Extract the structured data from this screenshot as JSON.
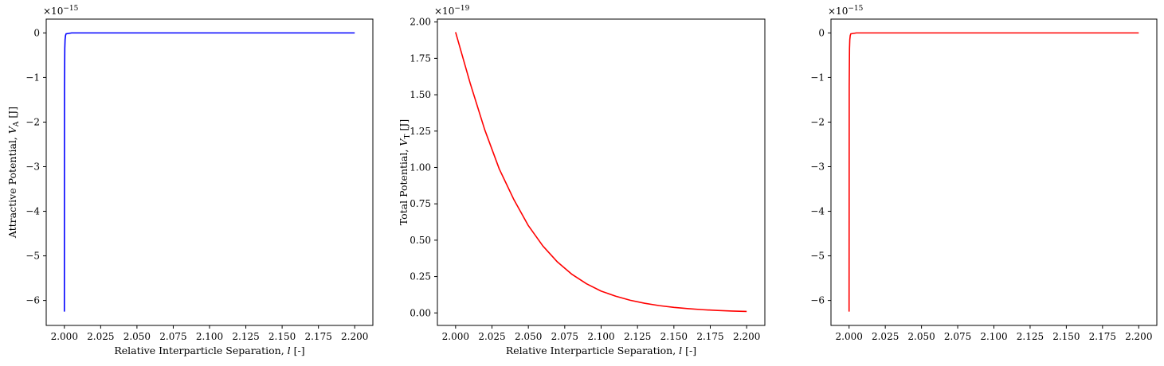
{
  "chart_data": [
    {
      "type": "line",
      "xlabel": "Relative Interparticle Separation, l [-]",
      "ylabel": "Attractive Potential, V_A [J]",
      "ylabel_parts": {
        "pre": "Attractive Potential, ",
        "var": "V",
        "sub": "A",
        "post": " [J]"
      },
      "xlabel_parts": {
        "pre": "Relative Interparticle Separation, ",
        "var": "l",
        "post": " [-]"
      },
      "y_multiplier": {
        "base": "×10",
        "exponent": "−15"
      },
      "xlim": [
        1.9875,
        2.2125
      ],
      "ylim": [
        -6.56,
        0.31
      ],
      "xticks": [
        2.0,
        2.025,
        2.05,
        2.075,
        2.1,
        2.125,
        2.15,
        2.175,
        2.2
      ],
      "xtick_labels": [
        "2.000",
        "2.025",
        "2.050",
        "2.075",
        "2.100",
        "2.125",
        "2.150",
        "2.175",
        "2.200"
      ],
      "yticks": [
        0,
        -1,
        -2,
        -3,
        -4,
        -5,
        -6
      ],
      "ytick_labels": [
        "0",
        "−1",
        "−2",
        "−3",
        "−4",
        "−5",
        "−6"
      ],
      "series": [
        {
          "color": "#0000ff",
          "x": [
            2.0,
            2.0001,
            2.0003,
            2.0005,
            2.0008,
            2.0012,
            2.005,
            2.05,
            2.1,
            2.15,
            2.2
          ],
          "y": [
            -6.25,
            -1.2,
            -0.35,
            -0.15,
            -0.06,
            -0.02,
            0,
            0,
            0,
            0,
            0
          ]
        }
      ]
    },
    {
      "type": "line",
      "xlabel": "Relative Interparticle Separation, l [-]",
      "ylabel": "Total Potential, V_T [J]",
      "ylabel_parts": {
        "pre": "Total Potential, ",
        "var": "V",
        "sub": "T",
        "post": " [J]"
      },
      "xlabel_parts": {
        "pre": "Relative Interparticle Separation, ",
        "var": "l",
        "post": " [-]"
      },
      "y_multiplier": {
        "base": "×10",
        "exponent": "−19"
      },
      "xlim": [
        1.9875,
        2.2125
      ],
      "ylim": [
        -0.086,
        2.02
      ],
      "xticks": [
        2.0,
        2.025,
        2.05,
        2.075,
        2.1,
        2.125,
        2.15,
        2.175,
        2.2
      ],
      "xtick_labels": [
        "2.000",
        "2.025",
        "2.050",
        "2.075",
        "2.100",
        "2.125",
        "2.150",
        "2.175",
        "2.200"
      ],
      "yticks": [
        0,
        0.25,
        0.5,
        0.75,
        1.0,
        1.25,
        1.5,
        1.75,
        2.0
      ],
      "ytick_labels": [
        "0.00",
        "0.25",
        "0.50",
        "0.75",
        "1.00",
        "1.25",
        "1.50",
        "1.75",
        "2.00"
      ],
      "series": [
        {
          "color": "#ff0000",
          "x": [
            2.0,
            2.01,
            2.02,
            2.03,
            2.04,
            2.05,
            2.06,
            2.07,
            2.08,
            2.09,
            2.1,
            2.11,
            2.12,
            2.13,
            2.14,
            2.15,
            2.16,
            2.17,
            2.18,
            2.19,
            2.2
          ],
          "y": [
            1.93,
            1.58,
            1.26,
            0.99,
            0.78,
            0.6,
            0.46,
            0.35,
            0.265,
            0.2,
            0.15,
            0.115,
            0.087,
            0.066,
            0.05,
            0.038,
            0.029,
            0.022,
            0.017,
            0.013,
            0.01
          ]
        }
      ]
    },
    {
      "type": "line",
      "xlabel": "",
      "ylabel": "",
      "y_multiplier": {
        "base": "×10",
        "exponent": "−15"
      },
      "xlim": [
        1.9875,
        2.2125
      ],
      "ylim": [
        -6.56,
        0.31
      ],
      "xticks": [
        2.0,
        2.025,
        2.05,
        2.075,
        2.1,
        2.125,
        2.15,
        2.175,
        2.2
      ],
      "xtick_labels": [
        "2.000",
        "2.025",
        "2.050",
        "2.075",
        "2.100",
        "2.125",
        "2.150",
        "2.175",
        "2.200"
      ],
      "yticks": [
        0,
        -1,
        -2,
        -3,
        -4,
        -5,
        -6
      ],
      "ytick_labels": [
        "0",
        "−1",
        "−2",
        "−3",
        "−4",
        "−5",
        "−6"
      ],
      "series": [
        {
          "color": "#ff0000",
          "x": [
            2.0,
            2.0001,
            2.0003,
            2.0005,
            2.0008,
            2.0012,
            2.005,
            2.05,
            2.1,
            2.15,
            2.2
          ],
          "y": [
            -6.25,
            -1.2,
            -0.35,
            -0.15,
            -0.06,
            -0.02,
            0,
            0,
            0,
            0,
            0
          ]
        }
      ]
    }
  ]
}
